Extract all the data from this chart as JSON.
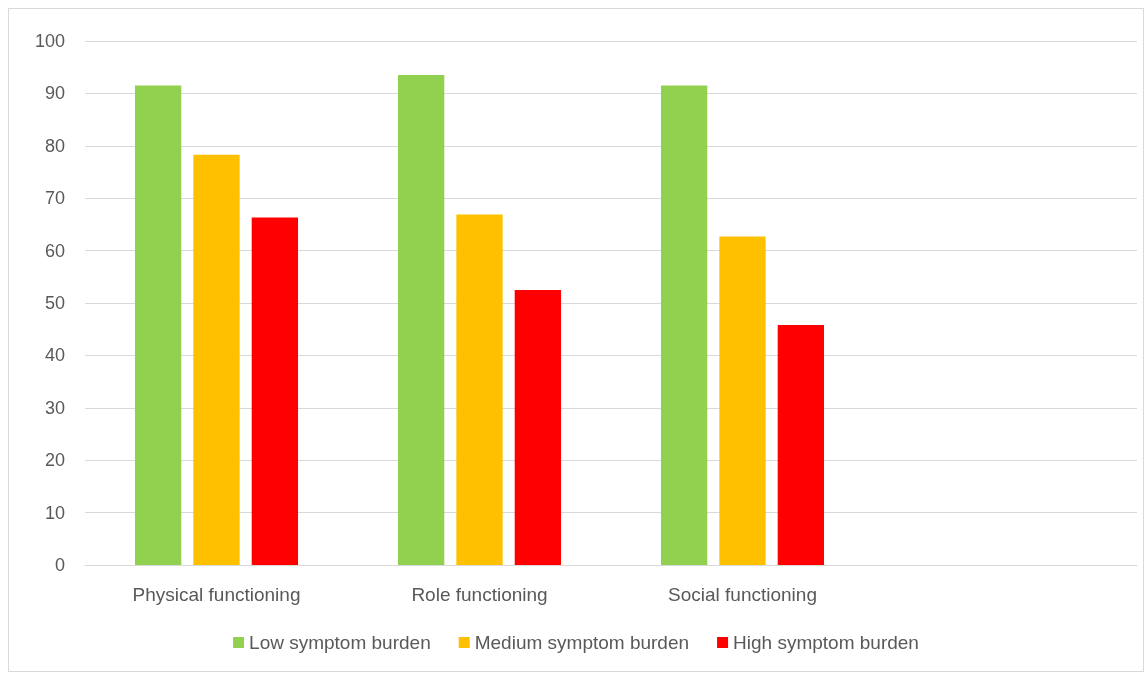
{
  "chart_data": {
    "type": "bar",
    "categories": [
      "Physical functioning",
      "Role functioning",
      "Social functioning",
      null
    ],
    "series": [
      {
        "name": "Low symptom burden",
        "color": "#92d050",
        "values": [
          91.5,
          93.5,
          91.5,
          null
        ]
      },
      {
        "name": "Medium symptom burden",
        "color": "#ffc000",
        "values": [
          78.3,
          66.9,
          62.7,
          null
        ]
      },
      {
        "name": "High symptom burden",
        "color": "#ff0000",
        "values": [
          66.3,
          52.5,
          45.8,
          null
        ]
      }
    ],
    "ylim": [
      0,
      100
    ],
    "yticks": [
      0,
      10,
      20,
      30,
      40,
      50,
      60,
      70,
      80,
      90,
      100
    ],
    "grid": "y",
    "legend": "bottom"
  }
}
